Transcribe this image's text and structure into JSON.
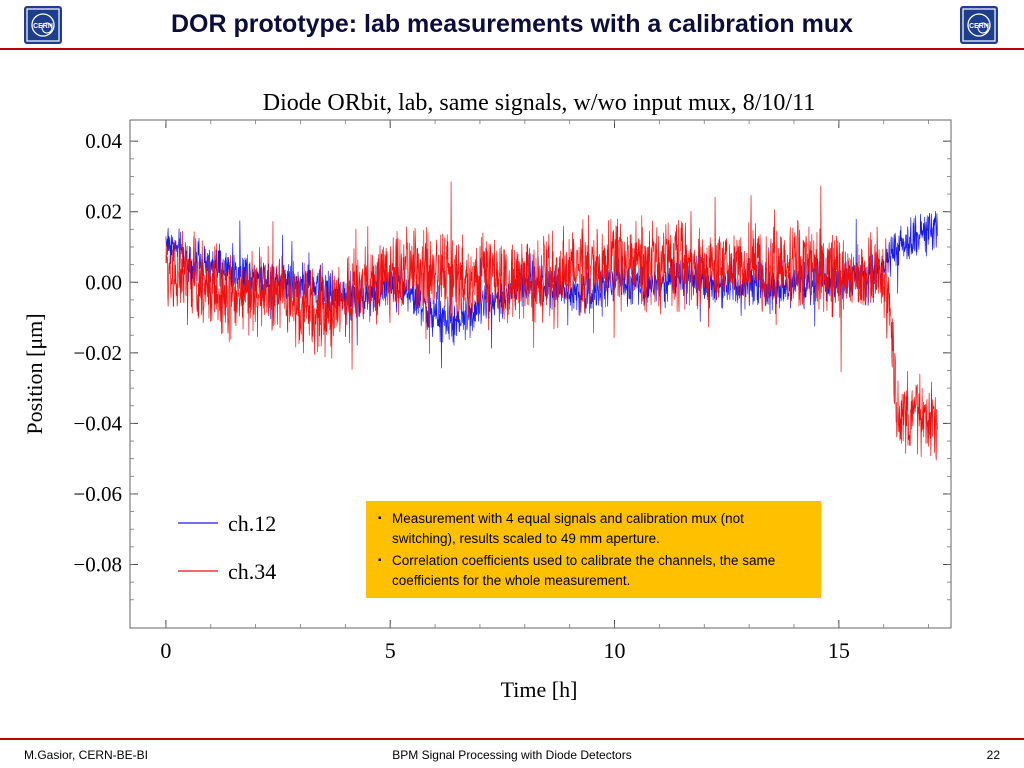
{
  "slide": {
    "title": "DOR prototype: lab measurements with a calibration mux",
    "logo_text": "CERN",
    "footer": {
      "left": "M.Gasior, CERN-BE-BI",
      "center": "BPM Signal Processing with Diode Detectors",
      "right": "22"
    },
    "accent_color": "#c00000"
  },
  "note": {
    "items": [
      "Measurement with 4 equal signals and calibration mux (not switching), results scaled to 49 mm aperture.",
      "Correlation coefficients used to calibrate the channels, the same coefficients for the whole measurement."
    ],
    "background": "#ffc000"
  },
  "chart_data": {
    "type": "line",
    "title": "Diode ORbit, lab, same signals, w/wo input mux, 8/10/11",
    "xlabel": "Time   [h]",
    "ylabel": "Position   [μm]",
    "xlim": [
      -0.8,
      17.5
    ],
    "ylim": [
      -0.098,
      0.046
    ],
    "xticks": [
      0,
      5,
      10,
      15
    ],
    "xtick_labels": [
      "0",
      "5",
      "10",
      "15"
    ],
    "yticks": [
      0.04,
      0.02,
      0.0,
      -0.02,
      -0.04,
      -0.06,
      -0.08
    ],
    "ytick_labels": [
      "0.04",
      "0.02",
      "0.00",
      "−0.02",
      "−0.04",
      "−0.06",
      "−0.08"
    ],
    "grid": false,
    "legend": {
      "placement": "bottom-left"
    },
    "series": [
      {
        "name": "ch.12",
        "color": "#1a1ae6",
        "x_range": [
          0,
          17.2
        ],
        "mean_profile": [
          [
            0,
            0.012
          ],
          [
            0.5,
            0.006
          ],
          [
            1.0,
            0.004
          ],
          [
            1.5,
            0.003
          ],
          [
            2.0,
            0.002
          ],
          [
            2.5,
            0.001
          ],
          [
            3.0,
            0.0
          ],
          [
            3.5,
            -0.002
          ],
          [
            4.0,
            -0.005
          ],
          [
            4.5,
            -0.004
          ],
          [
            5.0,
            0.0
          ],
          [
            5.5,
            -0.004
          ],
          [
            6.0,
            -0.01
          ],
          [
            6.5,
            -0.012
          ],
          [
            7.0,
            -0.006
          ],
          [
            7.5,
            -0.004
          ],
          [
            8.0,
            0.0
          ],
          [
            8.5,
            0.0
          ],
          [
            9.0,
            -0.002
          ],
          [
            9.5,
            -0.003
          ],
          [
            10.0,
            0.0
          ],
          [
            10.5,
            0.0
          ],
          [
            11.0,
            0.0
          ],
          [
            11.5,
            0.002
          ],
          [
            12.0,
            0.0
          ],
          [
            12.5,
            0.0
          ],
          [
            13.0,
            0.0
          ],
          [
            13.5,
            -0.002
          ],
          [
            14.0,
            0.0
          ],
          [
            14.5,
            0.0
          ],
          [
            15.0,
            0.0
          ],
          [
            15.5,
            0.002
          ],
          [
            16.0,
            0.003
          ],
          [
            16.2,
            0.008
          ],
          [
            16.5,
            0.012
          ],
          [
            17.0,
            0.015
          ],
          [
            17.2,
            0.014
          ]
        ],
        "noise_amplitude": 0.009
      },
      {
        "name": "ch.34",
        "color": "#ee1111",
        "x_range": [
          0,
          17.2
        ],
        "mean_profile": [
          [
            0,
            0.004
          ],
          [
            0.5,
            0.0
          ],
          [
            1.0,
            -0.002
          ],
          [
            1.5,
            -0.004
          ],
          [
            2.0,
            -0.003
          ],
          [
            2.5,
            -0.004
          ],
          [
            3.0,
            -0.006
          ],
          [
            3.5,
            -0.01
          ],
          [
            4.0,
            -0.004
          ],
          [
            4.5,
            0.0
          ],
          [
            5.0,
            0.002
          ],
          [
            5.5,
            0.004
          ],
          [
            6.0,
            0.003
          ],
          [
            6.5,
            0.0
          ],
          [
            7.0,
            0.002
          ],
          [
            7.5,
            0.0
          ],
          [
            8.0,
            0.001
          ],
          [
            8.5,
            0.002
          ],
          [
            9.0,
            0.003
          ],
          [
            9.5,
            0.004
          ],
          [
            10.0,
            0.006
          ],
          [
            10.5,
            0.006
          ],
          [
            11.0,
            0.005
          ],
          [
            11.5,
            0.006
          ],
          [
            12.0,
            0.004
          ],
          [
            12.5,
            0.005
          ],
          [
            13.0,
            0.004
          ],
          [
            13.5,
            0.003
          ],
          [
            14.0,
            0.005
          ],
          [
            14.5,
            0.003
          ],
          [
            15.0,
            0.002
          ],
          [
            15.5,
            0.002
          ],
          [
            16.0,
            0.001
          ],
          [
            16.15,
            -0.01
          ],
          [
            16.3,
            -0.04
          ],
          [
            16.7,
            -0.035
          ],
          [
            17.0,
            -0.04
          ],
          [
            17.2,
            -0.038
          ]
        ],
        "noise_amplitude": 0.017
      }
    ]
  }
}
